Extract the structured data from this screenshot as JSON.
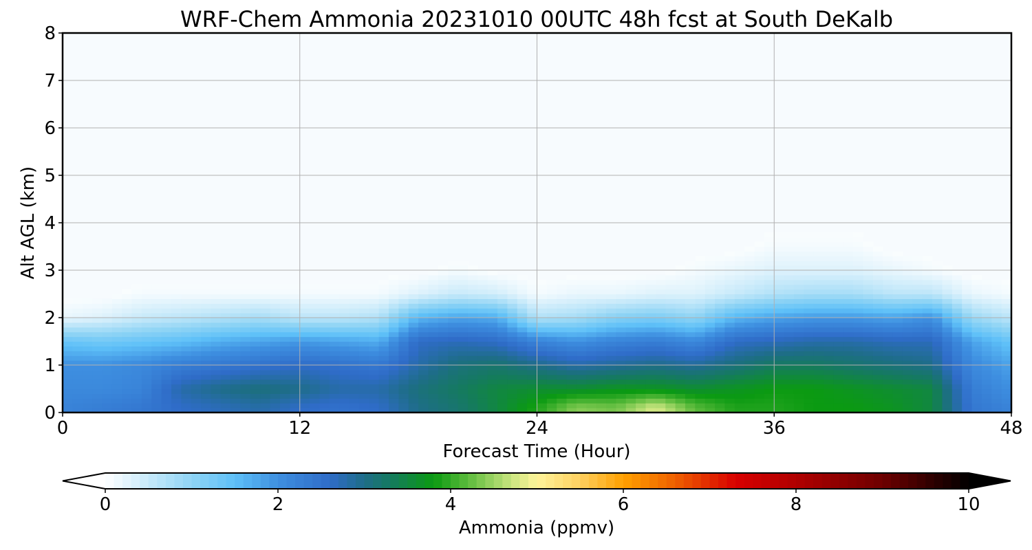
{
  "chart_data": {
    "type": "heatmap",
    "title": "WRF-Chem Ammonia  20231010 00UTC 48h fcst at South DeKalb",
    "xlabel": "Forecast Time (Hour)",
    "ylabel": "Alt AGL (km)",
    "xlim": [
      0,
      48
    ],
    "ylim": [
      0,
      8
    ],
    "x_ticks": [
      "0",
      "12",
      "24",
      "36",
      "48"
    ],
    "y_ticks": [
      "0",
      "1",
      "2",
      "3",
      "4",
      "5",
      "6",
      "7",
      "8"
    ],
    "grid": true,
    "x_hours": [
      0,
      2,
      4,
      6,
      8,
      10,
      12,
      14,
      16,
      18,
      20,
      22,
      24,
      26,
      28,
      30,
      32,
      34,
      36,
      38,
      40,
      42,
      44,
      46,
      48
    ],
    "alt_km": [
      0.1,
      0.5,
      1.0,
      1.5,
      2.0,
      2.5,
      3.0,
      3.5
    ],
    "ammonia_ppmv": [
      [
        2.2,
        2.1,
        2.0,
        1.4,
        0.2,
        0.0,
        0.0,
        0.0
      ],
      [
        2.3,
        2.1,
        2.0,
        1.3,
        0.3,
        0.0,
        0.0,
        0.0
      ],
      [
        2.4,
        2.2,
        2.1,
        1.4,
        0.5,
        0.1,
        0.0,
        0.0
      ],
      [
        2.6,
        2.8,
        2.3,
        1.5,
        0.6,
        0.1,
        0.0,
        0.0
      ],
      [
        2.7,
        3.0,
        2.4,
        1.7,
        0.7,
        0.1,
        0.0,
        0.0
      ],
      [
        2.8,
        3.1,
        2.5,
        1.8,
        0.8,
        0.1,
        0.0,
        0.0
      ],
      [
        2.6,
        3.0,
        2.6,
        1.9,
        0.6,
        0.1,
        0.0,
        0.0
      ],
      [
        2.5,
        2.8,
        2.5,
        1.8,
        0.6,
        0.1,
        0.0,
        0.0
      ],
      [
        2.6,
        2.8,
        2.4,
        1.7,
        0.7,
        0.1,
        0.0,
        0.0
      ],
      [
        3.0,
        3.1,
        2.8,
        2.6,
        1.6,
        0.3,
        0.0,
        0.0
      ],
      [
        3.2,
        3.3,
        3.1,
        2.7,
        1.8,
        0.5,
        0.1,
        0.0
      ],
      [
        3.5,
        3.5,
        3.2,
        2.6,
        1.7,
        0.4,
        0.0,
        0.0
      ],
      [
        3.9,
        3.6,
        3.0,
        2.2,
        0.7,
        0.1,
        0.0,
        0.0
      ],
      [
        4.4,
        3.6,
        2.8,
        2.0,
        0.8,
        0.2,
        0.0,
        0.0
      ],
      [
        4.3,
        3.7,
        2.9,
        2.2,
        1.1,
        0.2,
        0.0,
        0.0
      ],
      [
        4.8,
        3.7,
        3.0,
        2.3,
        1.2,
        0.3,
        0.0,
        0.0
      ],
      [
        4.2,
        3.6,
        2.9,
        2.1,
        1.0,
        0.3,
        0.1,
        0.0
      ],
      [
        3.9,
        3.7,
        3.1,
        2.6,
        1.6,
        0.5,
        0.2,
        0.0
      ],
      [
        3.9,
        3.8,
        3.3,
        2.7,
        1.8,
        0.7,
        0.3,
        0.1
      ],
      [
        3.8,
        3.8,
        3.3,
        2.8,
        1.9,
        0.8,
        0.3,
        0.1
      ],
      [
        3.8,
        3.7,
        3.2,
        2.8,
        1.9,
        0.8,
        0.3,
        0.1
      ],
      [
        3.7,
        3.6,
        3.1,
        2.7,
        1.8,
        0.6,
        0.2,
        0.0
      ],
      [
        3.5,
        3.5,
        3.0,
        2.7,
        2.0,
        0.6,
        0.1,
        0.0
      ],
      [
        2.4,
        2.3,
        2.1,
        1.8,
        0.9,
        0.2,
        0.0,
        0.0
      ],
      [
        2.2,
        2.0,
        1.8,
        1.4,
        0.6,
        0.1,
        0.0,
        0.0
      ]
    ],
    "colorbar": {
      "label": "Ammonia  (ppmv)",
      "range": [
        0,
        10
      ],
      "ticks": [
        "0",
        "2",
        "4",
        "6",
        "8",
        "10"
      ],
      "extend": "both",
      "stops": [
        {
          "v": 0.0,
          "c": "#ffffff"
        },
        {
          "v": 1.0,
          "c": "#8fd4f5"
        },
        {
          "v": 1.5,
          "c": "#5ec0f8"
        },
        {
          "v": 2.0,
          "c": "#3e8fe0"
        },
        {
          "v": 2.6,
          "c": "#2f6cc8"
        },
        {
          "v": 3.0,
          "c": "#1e6d88"
        },
        {
          "v": 3.3,
          "c": "#157a60"
        },
        {
          "v": 3.8,
          "c": "#0b9a12"
        },
        {
          "v": 4.2,
          "c": "#5cbb3c"
        },
        {
          "v": 4.7,
          "c": "#c9e57f"
        },
        {
          "v": 5.0,
          "c": "#fff49a"
        },
        {
          "v": 5.5,
          "c": "#ffd060"
        },
        {
          "v": 6.0,
          "c": "#ffa000"
        },
        {
          "v": 6.6,
          "c": "#ef6000"
        },
        {
          "v": 7.3,
          "c": "#d80000"
        },
        {
          "v": 8.0,
          "c": "#b00000"
        },
        {
          "v": 9.0,
          "c": "#6e0000"
        },
        {
          "v": 10.0,
          "c": "#000000"
        }
      ]
    },
    "background_color": "#f7fbfe",
    "grid_color": "#b0b0b0"
  }
}
